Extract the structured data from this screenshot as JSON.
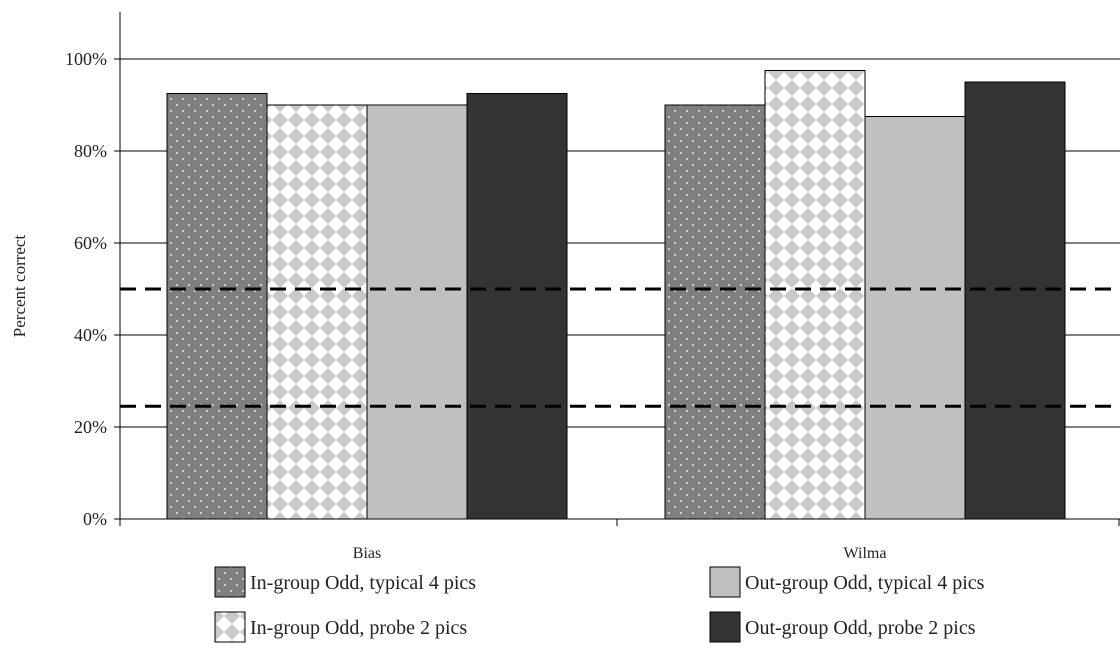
{
  "chart_data": {
    "type": "bar",
    "title": "",
    "xlabel": "",
    "ylabel": "Percent correct",
    "ylim": [
      0,
      100
    ],
    "yticks": [
      "0%",
      "20%",
      "40%",
      "60%",
      "80%",
      "100%"
    ],
    "ytick_values": [
      0,
      20,
      40,
      60,
      80,
      100
    ],
    "grid": true,
    "legend_position": "bottom",
    "categories": [
      "Bias",
      "Wilma"
    ],
    "series": [
      {
        "name": "In-group Odd, typical 4 pics",
        "values": [
          92.5,
          90
        ],
        "pattern": "dots",
        "color": "#7f7f7f"
      },
      {
        "name": "In-group Odd, probe 2 pics",
        "values": [
          90,
          97.5
        ],
        "pattern": "checker",
        "color": "#c8c8c8"
      },
      {
        "name": "Out-group Odd, typical 4 pics",
        "values": [
          90,
          87.5
        ],
        "pattern": "solid",
        "color": "#c0c0c0"
      },
      {
        "name": "Out-group Odd, probe 2 pics",
        "values": [
          92.5,
          95
        ],
        "pattern": "solid",
        "color": "#333333"
      }
    ],
    "reference_lines": [
      {
        "value": 50,
        "style": "dashed"
      },
      {
        "value": 24.5,
        "style": "dashed"
      }
    ]
  }
}
